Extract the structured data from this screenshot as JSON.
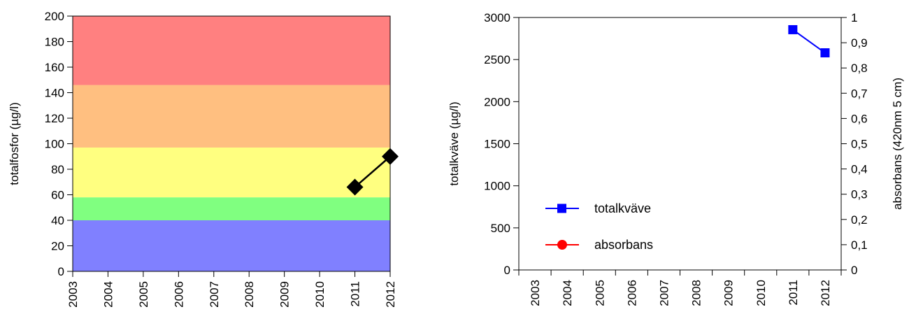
{
  "chart_data": [
    {
      "type": "line",
      "ylabel": "totalfosfor (µg/l)",
      "ylim": [
        0,
        200
      ],
      "y_ticks": [
        0,
        20,
        40,
        60,
        80,
        100,
        120,
        140,
        160,
        180,
        200
      ],
      "x_categories": [
        "2003",
        "2004",
        "2005",
        "2006",
        "2007",
        "2008",
        "2009",
        "2010",
        "2011",
        "2012"
      ],
      "background_bands": [
        {
          "from": 0,
          "to": 40,
          "color": "#8080ff"
        },
        {
          "from": 40,
          "to": 58,
          "color": "#80ff80"
        },
        {
          "from": 58,
          "to": 97,
          "color": "#ffff80"
        },
        {
          "from": 97,
          "to": 146,
          "color": "#ffbf80"
        },
        {
          "from": 146,
          "to": 200,
          "color": "#ff8080"
        }
      ],
      "series": [
        {
          "x": [
            "2011",
            "2012"
          ],
          "values": [
            66,
            90
          ],
          "marker": "diamond",
          "color": "#000000"
        }
      ]
    },
    {
      "type": "line",
      "ylabel": "totalkväve (µg/l)",
      "ylabel_right": "absorbans (420nm 5 cm)",
      "ylim": [
        0,
        3000
      ],
      "ylim_right": [
        0,
        1
      ],
      "y_ticks": [
        0,
        500,
        1000,
        1500,
        2000,
        2500,
        3000
      ],
      "y_ticks_right": [
        "0",
        "0,1",
        "0,2",
        "0,3",
        "0,4",
        "0,5",
        "0,6",
        "0,7",
        "0,8",
        "0,9",
        "1"
      ],
      "x_categories": [
        "2003",
        "2004",
        "2005",
        "2006",
        "2007",
        "2008",
        "2009",
        "2010",
        "2011",
        "2012"
      ],
      "legend_position": "bottom-left",
      "series": [
        {
          "name": "totalkväve",
          "x": [
            "2011",
            "2012"
          ],
          "values": [
            2855,
            2580
          ],
          "marker": "square",
          "color": "#0000ff",
          "axis": "left"
        },
        {
          "name": "absorbans",
          "x": [],
          "values": [],
          "marker": "circle",
          "color": "#ff0000",
          "axis": "right"
        }
      ]
    }
  ]
}
